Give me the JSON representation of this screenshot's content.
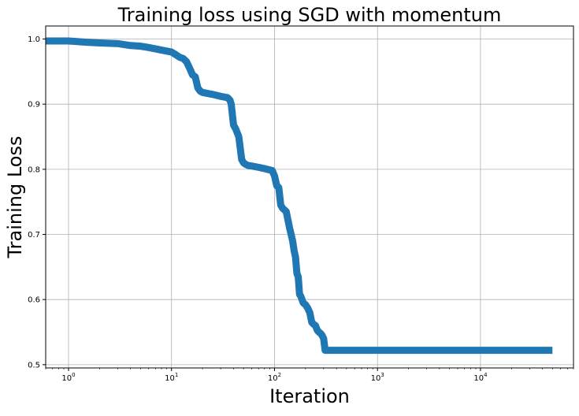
{
  "chart_data": {
    "type": "line",
    "title": "Training loss using SGD with momentum",
    "xlabel": "Iteration",
    "ylabel": "Training Loss",
    "x_scale": "log",
    "xlim": [
      0.6,
      80000
    ],
    "ylim": [
      0.495,
      1.02
    ],
    "grid": true,
    "x_ticks": [
      {
        "value": 1,
        "base": "10",
        "exp": "0"
      },
      {
        "value": 10,
        "base": "10",
        "exp": "1"
      },
      {
        "value": 100,
        "base": "10",
        "exp": "2"
      },
      {
        "value": 1000,
        "base": "10",
        "exp": "3"
      },
      {
        "value": 10000,
        "base": "10",
        "exp": "4"
      }
    ],
    "y_ticks": [
      {
        "value": 0.5,
        "label": "0.5"
      },
      {
        "value": 0.6,
        "label": "0.6"
      },
      {
        "value": 0.7,
        "label": "0.7"
      },
      {
        "value": 0.8,
        "label": "0.8"
      },
      {
        "value": 0.9,
        "label": "0.9"
      },
      {
        "value": 1.0,
        "label": "1.0"
      }
    ],
    "line_color": "#1f77b4",
    "series": [
      {
        "x": [
          0.6,
          1,
          1.5,
          2,
          3,
          4,
          5,
          6,
          8,
          10,
          11,
          12,
          13,
          14,
          15,
          16,
          17,
          18,
          19,
          20,
          25,
          30,
          35,
          37,
          38,
          40,
          42,
          45,
          48,
          50,
          52,
          55,
          60,
          70,
          80,
          95,
          100,
          105,
          110,
          115,
          120,
          130,
          140,
          145,
          150,
          155,
          160,
          165,
          170,
          175,
          180,
          190,
          200,
          210,
          220,
          230,
          240,
          250,
          260,
          270,
          280,
          290,
          300,
          310,
          320,
          340,
          360,
          400,
          500,
          1000,
          10000,
          50000
        ],
        "y": [
          0.997,
          0.997,
          0.995,
          0.994,
          0.993,
          0.99,
          0.989,
          0.987,
          0.983,
          0.98,
          0.976,
          0.972,
          0.97,
          0.965,
          0.955,
          0.945,
          0.942,
          0.925,
          0.92,
          0.918,
          0.915,
          0.912,
          0.91,
          0.906,
          0.9,
          0.868,
          0.862,
          0.85,
          0.815,
          0.81,
          0.808,
          0.806,
          0.805,
          0.803,
          0.801,
          0.798,
          0.79,
          0.775,
          0.772,
          0.745,
          0.74,
          0.735,
          0.71,
          0.7,
          0.69,
          0.675,
          0.665,
          0.64,
          0.635,
          0.608,
          0.605,
          0.595,
          0.592,
          0.587,
          0.58,
          0.565,
          0.562,
          0.56,
          0.553,
          0.55,
          0.548,
          0.545,
          0.54,
          0.522,
          0.522,
          0.522,
          0.522,
          0.522,
          0.522,
          0.522,
          0.522,
          0.522
        ]
      }
    ]
  }
}
